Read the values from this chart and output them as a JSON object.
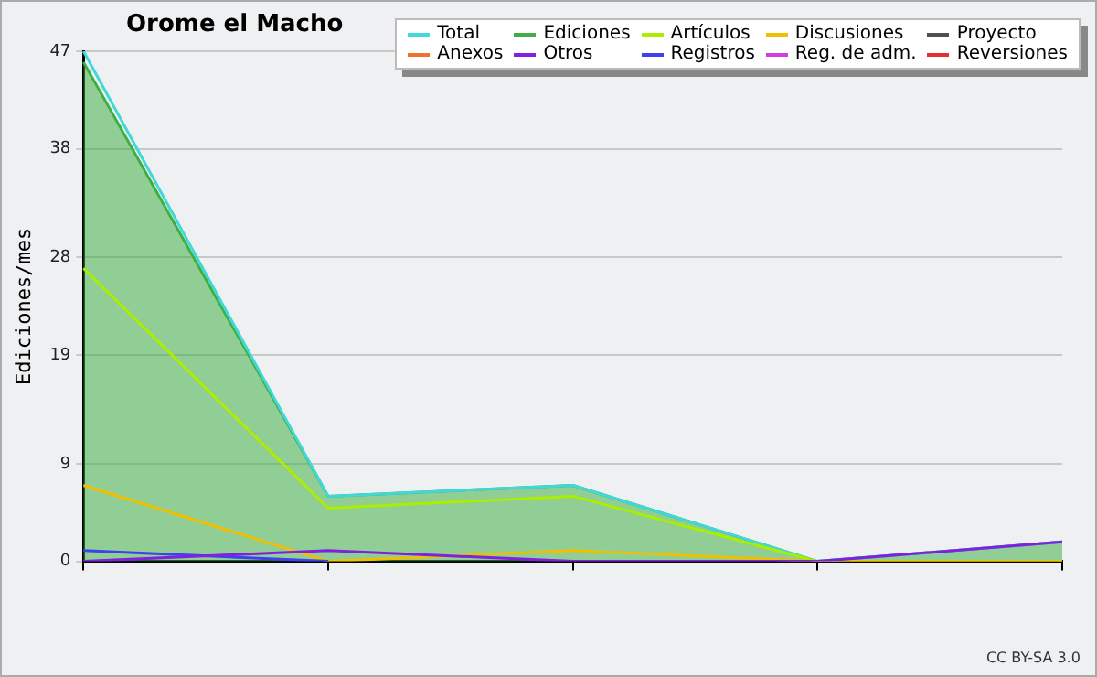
{
  "chart_data": {
    "type": "line",
    "title": "Orome el Macho",
    "ylabel": "Ediciones/mes",
    "categories": [
      null,
      null,
      null,
      null,
      null
    ],
    "series": [
      {
        "name": "Ediciones",
        "type": "area",
        "color": "#3cb043",
        "values": [
          46,
          6,
          7,
          0,
          1.8
        ]
      },
      {
        "name": "Total",
        "color": "#40d8d8",
        "values": [
          47,
          6,
          7,
          0,
          1.8
        ]
      },
      {
        "name": "Artículos",
        "color": "#aaee00",
        "values": [
          27,
          4.9,
          6,
          0,
          0
        ]
      },
      {
        "name": "Discusiones",
        "color": "#f0c000",
        "values": [
          7,
          0,
          1,
          0,
          0
        ]
      },
      {
        "name": "Proyecto",
        "color": "#505050",
        "values": [
          null,
          null,
          null,
          null,
          null
        ]
      },
      {
        "name": "Anexos",
        "color": "#f07030",
        "values": [
          null,
          null,
          null,
          null,
          null
        ]
      },
      {
        "name": "Registros",
        "color": "#4040f0",
        "values": [
          1,
          0,
          null,
          null,
          null
        ]
      },
      {
        "name": "Reg. de adm.",
        "color": "#d040e0",
        "values": [
          null,
          null,
          null,
          null,
          null
        ]
      },
      {
        "name": "Reversiones",
        "color": "#e03030",
        "values": [
          null,
          null,
          null,
          null,
          null
        ]
      },
      {
        "name": "Otros",
        "color": "#8020e0",
        "values": [
          0,
          1,
          0,
          0,
          1.8
        ]
      }
    ],
    "ylim": [
      0,
      47
    ],
    "yticks": [
      0,
      9,
      19,
      28,
      38,
      47
    ],
    "grid": "y",
    "legend": "top right",
    "annotations": [
      "CC BY-SA 3.0"
    ]
  }
}
